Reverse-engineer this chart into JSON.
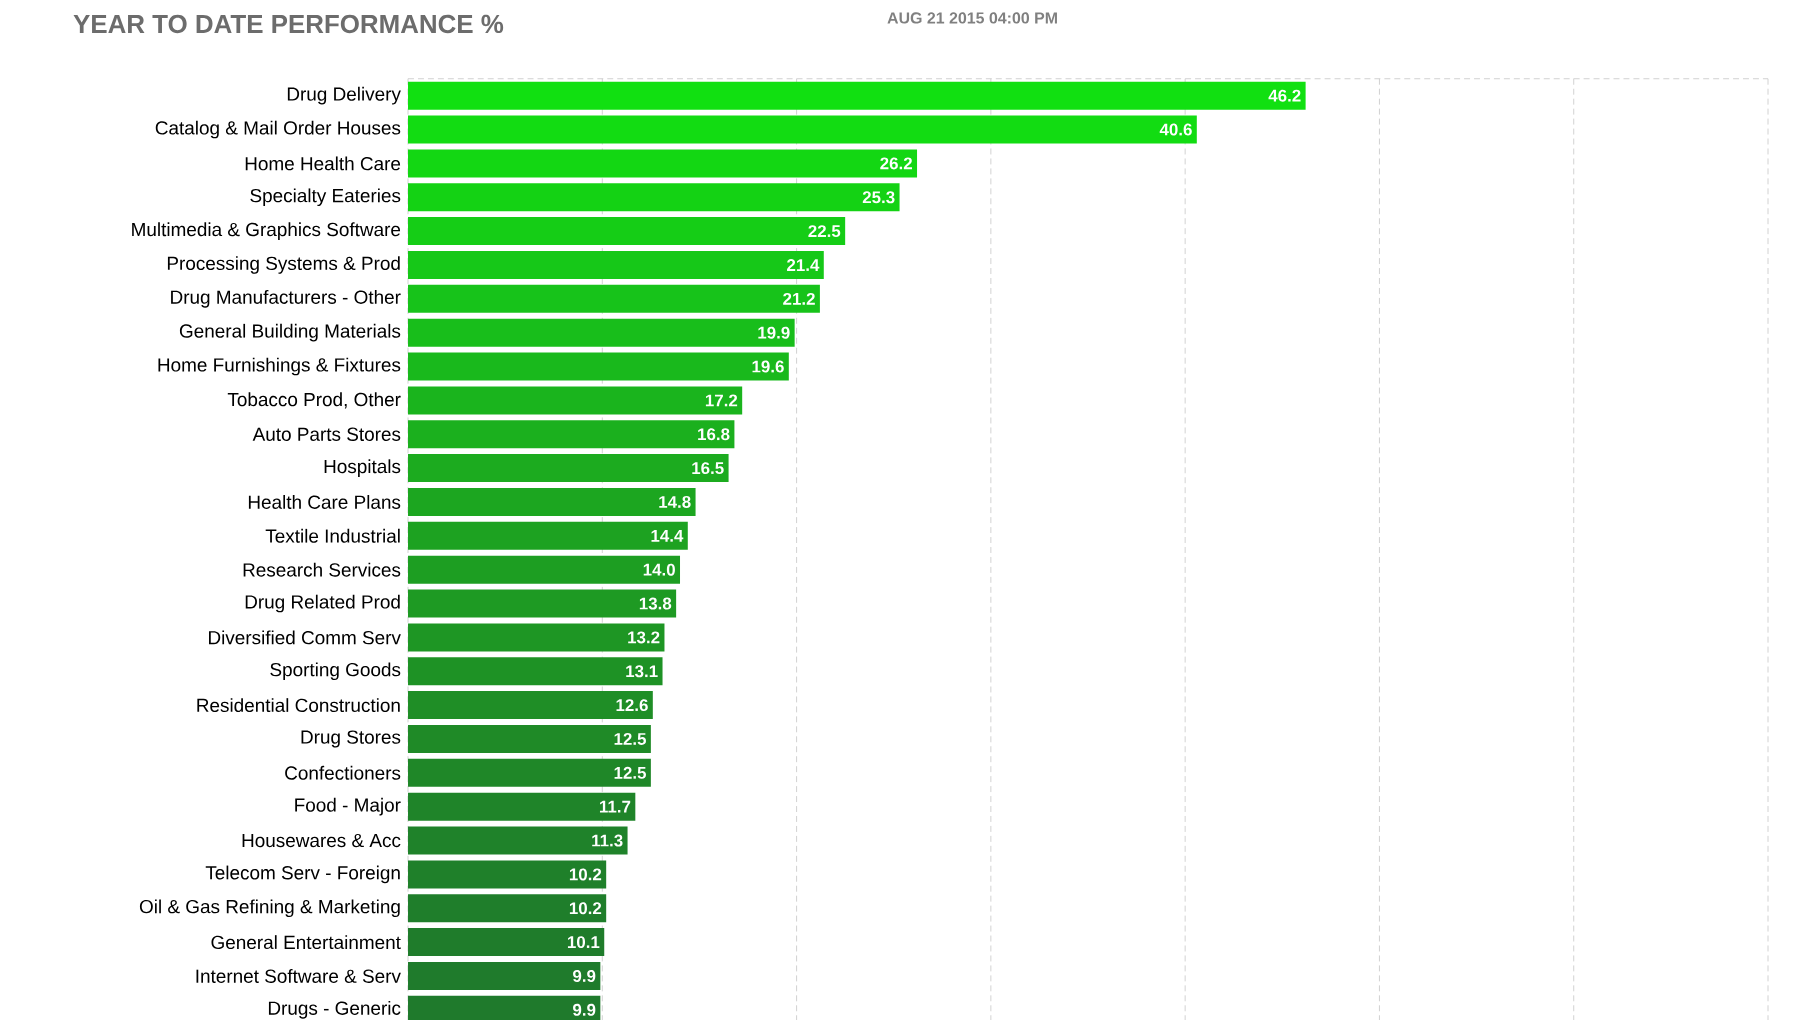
{
  "chart_data": {
    "type": "bar",
    "orientation": "horizontal",
    "title": "YEAR TO DATE PERFORMANCE %",
    "subtitle": "AUG 21 2015 04:00 PM",
    "categories": [
      "Drug Delivery",
      "Catalog & Mail Order Houses",
      "Home Health Care",
      "Specialty Eateries",
      "Multimedia & Graphics Software",
      "Processing Systems & Prod",
      "Drug Manufacturers - Other",
      "General Building Materials",
      "Home Furnishings & Fixtures",
      "Tobacco Prod, Other",
      "Auto Parts Stores",
      "Hospitals",
      "Health Care Plans",
      "Textile Industrial",
      "Research Services",
      "Drug Related Prod",
      "Diversified Comm Serv",
      "Sporting Goods",
      "Residential Construction",
      "Drug Stores",
      "Confectioners",
      "Food - Major",
      "Housewares & Acc",
      "Telecom Serv - Foreign",
      "Oil & Gas Refining & Marketing",
      "General Entertainment",
      "Internet Software & Serv",
      "Drugs - Generic"
    ],
    "values": [
      46.2,
      40.6,
      26.2,
      25.3,
      22.5,
      21.4,
      21.2,
      19.9,
      19.6,
      17.2,
      16.8,
      16.5,
      14.8,
      14.4,
      14.0,
      13.8,
      13.2,
      13.1,
      12.6,
      12.5,
      12.5,
      11.7,
      11.3,
      10.2,
      10.2,
      10.1,
      9.9,
      9.9
    ],
    "colors": [
      "#11e011",
      "#12dc12",
      "#13d713",
      "#14d214",
      "#15cd16",
      "#16c818",
      "#17c31a",
      "#18be1b",
      "#19b91c",
      "#1ab41d",
      "#1bb01e",
      "#1cab1f",
      "#1ca620",
      "#1da221",
      "#1d9e22",
      "#1e9a23",
      "#1e9624",
      "#1e9225",
      "#1f8e26",
      "#1f8a27",
      "#1f8728",
      "#1f8429",
      "#1f822a",
      "#1f802a",
      "#1f7e2b",
      "#1f7c2b",
      "#1f7b2c",
      "#1f7a2c"
    ],
    "xlim": [
      0,
      70
    ],
    "xticks": [
      {
        "value": 10,
        "label": null
      },
      {
        "value": 20,
        "label": null
      },
      {
        "value": 30,
        "label": null
      },
      {
        "value": 40,
        "label": null
      },
      {
        "value": 50,
        "label": null
      },
      {
        "value": 60,
        "label": null
      },
      {
        "value": 70,
        "label": null
      }
    ],
    "value_labels": [
      "46.2",
      "40.6",
      "26.2",
      "25.3",
      "22.5",
      "21.4",
      "21.2",
      "19.9",
      "19.6",
      "17.2",
      "16.8",
      "16.5",
      "14.8",
      "14.4",
      "14.0",
      "13.8",
      "13.2",
      "13.1",
      "12.6",
      "12.5",
      "12.5",
      "11.7",
      "11.3",
      "10.2",
      "10.2",
      "10.1",
      "9.9",
      "9.9"
    ],
    "tick_labels": "y",
    "grid": "x"
  }
}
